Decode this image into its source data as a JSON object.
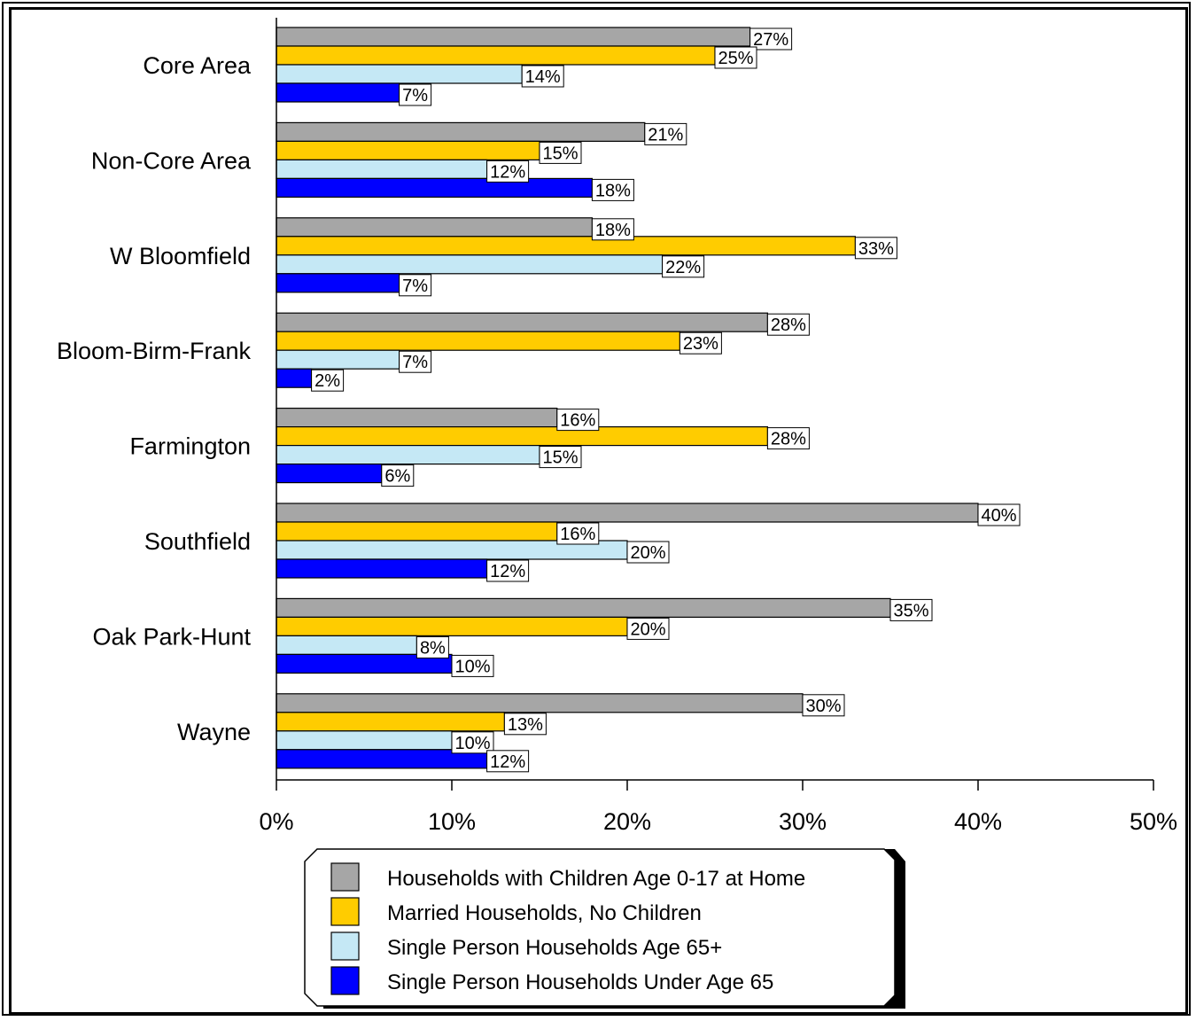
{
  "chart_data": {
    "type": "bar",
    "orientation": "horizontal",
    "categories": [
      "Core Area",
      "Non-Core Area",
      "W Bloomfield",
      "Bloom-Birm-Frank",
      "Farmington",
      "Southfield",
      "Oak Park-Hunt",
      "Wayne"
    ],
    "series": [
      {
        "name": "Households with Children Age 0-17 at Home",
        "color": "#a6a6a6",
        "values": [
          27,
          21,
          18,
          28,
          16,
          40,
          35,
          30
        ]
      },
      {
        "name": "Married Households, No Children",
        "color": "#ffcc00",
        "values": [
          25,
          15,
          33,
          23,
          28,
          16,
          20,
          13
        ]
      },
      {
        "name": "Single Person Households Age 65+",
        "color": "#c5e8f5",
        "values": [
          14,
          12,
          22,
          7,
          15,
          20,
          8,
          10
        ]
      },
      {
        "name": "Single Person Households Under Age 65",
        "color": "#0000ff",
        "values": [
          7,
          18,
          7,
          2,
          6,
          12,
          10,
          12
        ]
      }
    ],
    "xlim": [
      0,
      50
    ],
    "xticks": [
      0,
      10,
      20,
      30,
      40,
      50
    ],
    "tick_suffix": "%",
    "data_label_suffix": "%",
    "grid": false,
    "legend_placement": "bottom"
  }
}
